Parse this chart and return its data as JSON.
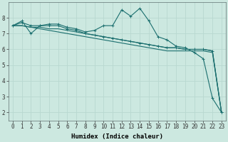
{
  "xlabel": "Humidex (Indice chaleur)",
  "ylabel": "",
  "background_color": "#cce8e0",
  "grid_color": "#b8d8d0",
  "line_color": "#1a6e6e",
  "x_values": [
    0,
    1,
    2,
    3,
    4,
    5,
    6,
    7,
    8,
    9,
    10,
    11,
    12,
    13,
    14,
    15,
    16,
    17,
    18,
    19,
    20,
    21,
    22,
    23
  ],
  "series1": [
    7.5,
    7.8,
    7.0,
    7.5,
    7.6,
    7.6,
    7.4,
    7.3,
    7.1,
    7.2,
    7.5,
    7.5,
    8.5,
    8.1,
    8.6,
    7.8,
    6.8,
    6.6,
    6.2,
    6.1,
    5.8,
    5.4,
    2.9,
    2.0
  ],
  "series2": [
    7.5,
    7.7,
    7.5,
    7.5,
    7.5,
    7.5,
    7.3,
    7.2,
    7.0,
    6.9,
    6.8,
    6.7,
    6.6,
    6.5,
    6.4,
    6.3,
    6.2,
    6.1,
    6.1,
    6.0,
    6.0,
    6.0,
    5.9,
    2.0
  ],
  "series3": [
    7.5,
    7.5,
    7.4,
    7.4,
    7.3,
    7.3,
    7.2,
    7.1,
    7.0,
    6.9,
    6.8,
    6.7,
    6.6,
    6.5,
    6.4,
    6.3,
    6.2,
    6.1,
    6.1,
    6.0,
    6.0,
    6.0,
    5.9,
    2.0
  ],
  "series4": [
    7.5,
    7.5,
    7.4,
    7.3,
    7.2,
    7.1,
    7.0,
    6.9,
    6.8,
    6.7,
    6.6,
    6.5,
    6.4,
    6.3,
    6.2,
    6.1,
    6.0,
    5.9,
    5.9,
    5.9,
    5.9,
    5.9,
    5.8,
    2.0
  ],
  "ylim": [
    1.5,
    9.0
  ],
  "xlim": [
    -0.5,
    23.5
  ],
  "yticks": [
    2,
    3,
    4,
    5,
    6,
    7,
    8
  ],
  "xticks": [
    0,
    1,
    2,
    3,
    4,
    5,
    6,
    7,
    8,
    9,
    10,
    11,
    12,
    13,
    14,
    15,
    16,
    17,
    18,
    19,
    20,
    21,
    22,
    23
  ],
  "marker": "+",
  "markersize": 3,
  "linewidth": 0.8,
  "tick_fontsize": 5.5,
  "xlabel_fontsize": 6.5,
  "font_family": "monospace"
}
